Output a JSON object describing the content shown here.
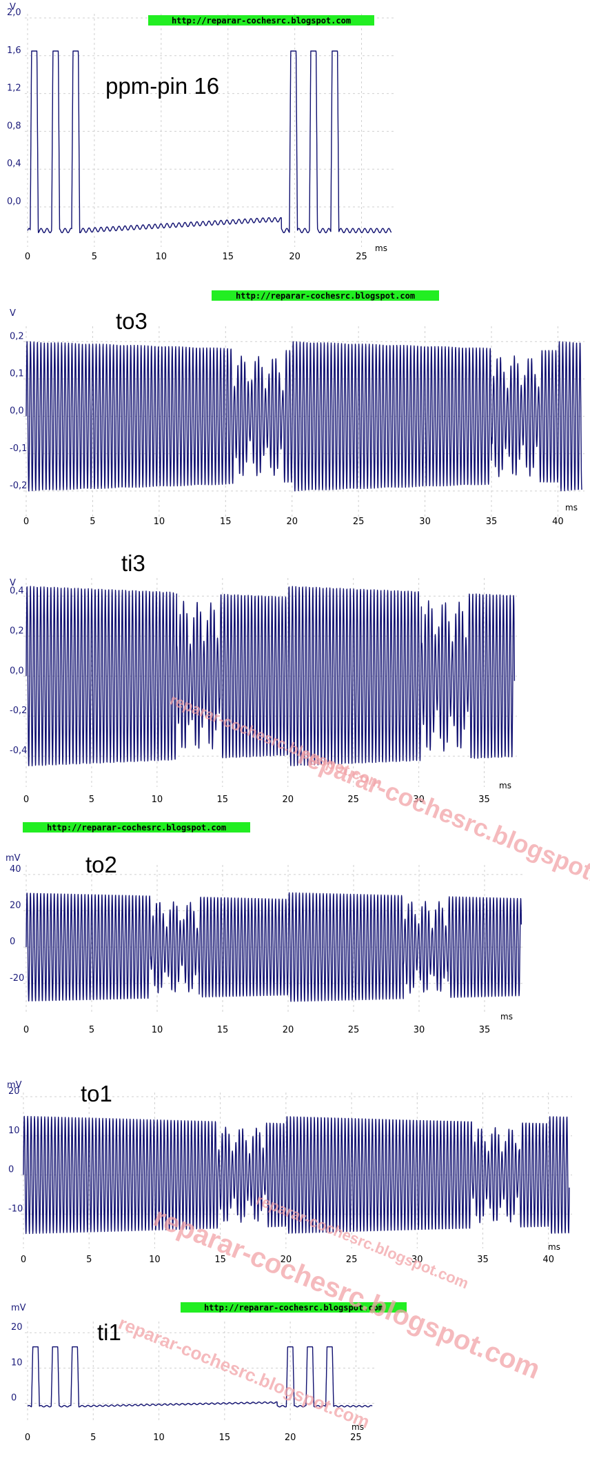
{
  "watermark_url": "http://reparar-cochesrc.blogspot.com",
  "watermark_big": [
    "reparar-cochesrc.blogspot.com",
    "reparar-cochesrc.blogspot.com",
    "reparar-cochesrc.blogspot.com",
    "reparar-cochesrc.blogspot.com",
    "reparar-cochesrc.blogspot.com"
  ],
  "colors": {
    "trace": "#101070",
    "url_bg": "#22ee22",
    "watermark": "#f2a3a8"
  },
  "chart_data": [
    {
      "type": "line",
      "title": "ppm-pin 16",
      "yunit": "V",
      "xunit": "ms",
      "xlim": [
        0,
        27.5
      ],
      "ylim": [
        -0.35,
        2.0
      ],
      "xticks": [
        "0",
        "5",
        "10",
        "15",
        "20",
        "25"
      ],
      "yticks": [
        "2,0",
        "1,6",
        "1,2",
        "0,8",
        "0,4",
        "0,0"
      ],
      "series": [
        {
          "pattern": "ppm",
          "baseline": -0.25,
          "peak": 1.65,
          "pulse_starts": [
            0.2,
            1.8,
            3.3,
            19.6,
            21.1,
            22.7
          ],
          "pulse_width": 0.6
        }
      ]
    },
    {
      "type": "line",
      "title": "to3",
      "yunit": "V",
      "xunit": "ms",
      "xlim": [
        0,
        42
      ],
      "ylim": [
        -0.25,
        0.23
      ],
      "xticks": [
        "0",
        "5",
        "10",
        "15",
        "20",
        "25",
        "30",
        "35",
        "40"
      ],
      "yticks": [
        "0,2",
        "0,1",
        "0,0",
        "-0,1",
        "-0,2"
      ],
      "series": [
        {
          "pattern": "burst",
          "amplitude": 0.2,
          "cycle": 0.26,
          "gaps": [
            [
              15.6,
              19.4
            ],
            [
              35.0,
              38.6
            ]
          ]
        }
      ]
    },
    {
      "type": "line",
      "title": "ti3",
      "yunit": "V",
      "xunit": "ms",
      "xlim": [
        0,
        37.5
      ],
      "ylim": [
        -0.52,
        0.47
      ],
      "xticks": [
        "0",
        "5",
        "10",
        "15",
        "20",
        "25",
        "30",
        "35"
      ],
      "yticks": [
        "0,4",
        "0,2",
        "0,0",
        "-0,2",
        "-0,4"
      ],
      "series": [
        {
          "pattern": "burst",
          "amplitude": 0.45,
          "cycle": 0.26,
          "gaps": [
            [
              11.5,
              14.8
            ],
            [
              30.2,
              33.8
            ]
          ]
        }
      ]
    },
    {
      "type": "line",
      "title": "to2",
      "yunit": "mV",
      "xunit": "ms",
      "xlim": [
        0,
        38
      ],
      "ylim": [
        -33,
        43
      ],
      "xticks": [
        "0",
        "5",
        "10",
        "15",
        "20",
        "25",
        "30",
        "35"
      ],
      "yticks": [
        "40",
        "20",
        "0",
        "-20"
      ],
      "series": [
        {
          "pattern": "burst",
          "amplitude": 30,
          "cycle": 0.26,
          "gaps": [
            [
              9.5,
              13.2
            ],
            [
              28.8,
              32.2
            ]
          ]
        }
      ]
    },
    {
      "type": "line",
      "title": "to1",
      "yunit": "mV",
      "xunit": "ms",
      "xlim": [
        0,
        41.8
      ],
      "ylim": [
        -17,
        20
      ],
      "xticks": [
        "0",
        "5",
        "10",
        "15",
        "20",
        "25",
        "30",
        "35",
        "40"
      ],
      "yticks": [
        "20",
        "10",
        "0",
        "-10"
      ],
      "series": [
        {
          "pattern": "burst",
          "amplitude": 15,
          "cycle": 0.26,
          "gaps": [
            [
              14.8,
              18.5
            ],
            [
              34.2,
              37.8
            ]
          ]
        }
      ]
    },
    {
      "type": "line",
      "title": "ti1",
      "yunit": "mV",
      "xunit": "ms",
      "xlim": [
        0,
        26.5
      ],
      "ylim": [
        -3,
        22
      ],
      "xticks": [
        "0",
        "5",
        "10",
        "15",
        "20",
        "25"
      ],
      "yticks": [
        "20",
        "10",
        "0"
      ],
      "series": [
        {
          "pattern": "ppm",
          "baseline": -0.8,
          "peak": 16,
          "pulse_starts": [
            0.3,
            1.8,
            3.3,
            19.7,
            21.2,
            22.7
          ],
          "pulse_width": 0.6
        }
      ]
    }
  ]
}
